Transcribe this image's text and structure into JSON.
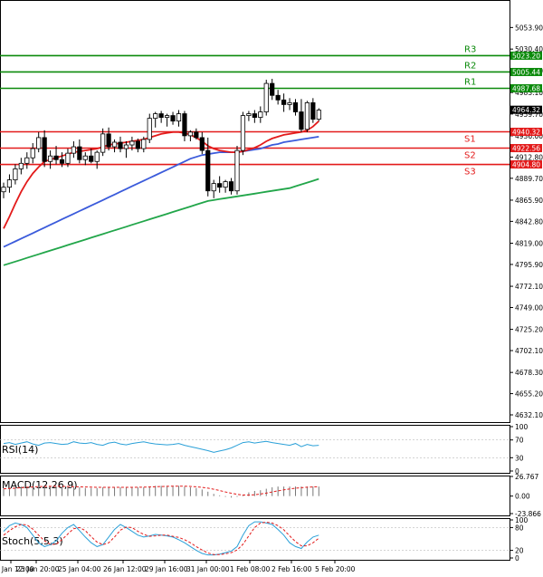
{
  "chart_data": {
    "type": "candlestick",
    "ylim": [
      4632.1,
      5072.0
    ],
    "price_ticks": [
      "5053.90",
      "5030.40",
      "5006.70",
      "4983.10",
      "4959.70",
      "4936.00",
      "4912.80",
      "4889.70",
      "4865.90",
      "4842.80",
      "4819.00",
      "4795.90",
      "4772.10",
      "4749.00",
      "4725.20",
      "4702.10",
      "4678.30",
      "4655.20",
      "4632.10"
    ],
    "time_labels": [
      "24 Jan 12:00",
      "23 Jan 20:00",
      "25 Jan 04:00",
      "26 Jan 12:00",
      "29 Jan 16:00",
      "31 Jan 00:00",
      "1 Feb 08:00",
      "2 Feb 16:00",
      "5 Feb 20:00"
    ],
    "current_price": "4964.32",
    "levels": [
      {
        "name": "R3",
        "value": 5023.2,
        "label": "5023.20",
        "color": "#0b8a0b"
      },
      {
        "name": "R2",
        "value": 5005.44,
        "label": "5005.44",
        "color": "#0b8a0b"
      },
      {
        "name": "R1",
        "value": 4987.68,
        "label": "4987.68",
        "color": "#0b8a0b"
      },
      {
        "name": "S1",
        "value": 4940.32,
        "label": "4940.32",
        "color": "#e31b1b"
      },
      {
        "name": "S2",
        "value": 4922.56,
        "label": "4922.56",
        "color": "#e31b1b"
      },
      {
        "name": "S3",
        "value": 4904.8,
        "label": "4904.80",
        "color": "#e31b1b"
      }
    ],
    "candles": [
      [
        4875,
        4885,
        4868,
        4880
      ],
      [
        4880,
        4894,
        4874,
        4888
      ],
      [
        4888,
        4905,
        4883,
        4900
      ],
      [
        4900,
        4912,
        4894,
        4906
      ],
      [
        4906,
        4918,
        4900,
        4912
      ],
      [
        4912,
        4928,
        4906,
        4922
      ],
      [
        4922,
        4940,
        4918,
        4934
      ],
      [
        4934,
        4942,
        4902,
        4908
      ],
      [
        4908,
        4920,
        4900,
        4914
      ],
      [
        4914,
        4925,
        4905,
        4910
      ],
      [
        4910,
        4918,
        4902,
        4906
      ],
      [
        4906,
        4922,
        4902,
        4917
      ],
      [
        4917,
        4930,
        4912,
        4924
      ],
      [
        4924,
        4932,
        4906,
        4910
      ],
      [
        4910,
        4918,
        4904,
        4914
      ],
      [
        4914,
        4922,
        4906,
        4908
      ],
      [
        4908,
        4920,
        4900,
        4918
      ],
      [
        4918,
        4944,
        4914,
        4938
      ],
      [
        4938,
        4945,
        4920,
        4924
      ],
      [
        4924,
        4932,
        4918,
        4929
      ],
      [
        4929,
        4935,
        4918,
        4922
      ],
      [
        4922,
        4930,
        4912,
        4926
      ],
      [
        4926,
        4935,
        4920,
        4930
      ],
      [
        4930,
        4933,
        4918,
        4922
      ],
      [
        4922,
        4935,
        4918,
        4932
      ],
      [
        4932,
        4960,
        4928,
        4955
      ],
      [
        4955,
        4962,
        4945,
        4960
      ],
      [
        4960,
        4963,
        4950,
        4956
      ],
      [
        4956,
        4960,
        4946,
        4958
      ],
      [
        4958,
        4962,
        4948,
        4952
      ],
      [
        4952,
        4964,
        4946,
        4960
      ],
      [
        4960,
        4963,
        4930,
        4936
      ],
      [
        4936,
        4942,
        4930,
        4940
      ],
      [
        4940,
        4944,
        4932,
        4934
      ],
      [
        4934,
        4940,
        4916,
        4920
      ],
      [
        4920,
        4934,
        4870,
        4876
      ],
      [
        4876,
        4888,
        4868,
        4884
      ],
      [
        4884,
        4892,
        4874,
        4880
      ],
      [
        4880,
        4888,
        4874,
        4886
      ],
      [
        4886,
        4890,
        4872,
        4876
      ],
      [
        4876,
        4925,
        4872,
        4920
      ],
      [
        4920,
        4962,
        4915,
        4958
      ],
      [
        4958,
        4963,
        4952,
        4960
      ],
      [
        4960,
        4964,
        4950,
        4956
      ],
      [
        4956,
        4968,
        4950,
        4962
      ],
      [
        4962,
        4997,
        4958,
        4993
      ],
      [
        4993,
        4998,
        4975,
        4980
      ],
      [
        4980,
        4986,
        4970,
        4975
      ],
      [
        4975,
        4982,
        4962,
        4970
      ],
      [
        4970,
        4977,
        4964,
        4972
      ],
      [
        4972,
        4976,
        4958,
        4962
      ],
      [
        4962,
        4976,
        4940,
        4943
      ],
      [
        4943,
        4974,
        4940,
        4972
      ],
      [
        4972,
        4977,
        4950,
        4954
      ],
      [
        4954,
        4966,
        4952,
        4964
      ]
    ],
    "ma_fast": [
      4835,
      4848,
      4862,
      4875,
      4886,
      4895,
      4902,
      4908,
      4910,
      4912,
      4914,
      4916,
      4918,
      4919,
      4920,
      4921,
      4922,
      4924,
      4926,
      4927,
      4928,
      4929,
      4930,
      4931,
      4932,
      4934,
      4936,
      4938,
      4939,
      4940,
      4940,
      4939,
      4937,
      4934,
      4930,
      4925,
      4922,
      4920,
      4919,
      4918,
      4918,
      4919,
      4921,
      4923,
      4926,
      4930,
      4933,
      4935,
      4937,
      4938,
      4939,
      4940,
      4942,
      4946,
      4952
    ],
    "ma_mid": [
      4815,
      4818,
      4821,
      4824,
      4827,
      4830,
      4833,
      4836,
      4839,
      4842,
      4845,
      4848,
      4851,
      4854,
      4857,
      4860,
      4863,
      4866,
      4869,
      4872,
      4875,
      4878,
      4881,
      4884,
      4887,
      4890,
      4893,
      4896,
      4899,
      4902,
      4905,
      4908,
      4911,
      4913,
      4915,
      4916,
      4917,
      4918,
      4918,
      4918,
      4918,
      4919,
      4920,
      4921,
      4922,
      4924,
      4926,
      4927,
      4929,
      4930,
      4931,
      4932,
      4933,
      4934,
      4935
    ],
    "ma_slow": [
      4795,
      4797,
      4799,
      4801,
      4803,
      4805,
      4807,
      4809,
      4811,
      4813,
      4815,
      4817,
      4819,
      4821,
      4823,
      4825,
      4827,
      4829,
      4831,
      4833,
      4835,
      4837,
      4839,
      4841,
      4843,
      4845,
      4847,
      4849,
      4851,
      4853,
      4855,
      4857,
      4859,
      4861,
      4863,
      4865,
      4866,
      4867,
      4868,
      4869,
      4870,
      4871,
      4872,
      4873,
      4874,
      4875,
      4876,
      4877,
      4878,
      4879,
      4881,
      4883,
      4885,
      4887,
      4889
    ],
    "rsi": {
      "label": "RSI(14)",
      "ticks": [
        "100",
        "70",
        "30",
        "0"
      ],
      "values": [
        62,
        64,
        60,
        63,
        66,
        61,
        58,
        63,
        64,
        62,
        60,
        61,
        66,
        63,
        62,
        64,
        60,
        58,
        63,
        65,
        61,
        59,
        62,
        64,
        66,
        63,
        61,
        60,
        59,
        60,
        62,
        58,
        55,
        52,
        49,
        46,
        42,
        45,
        48,
        52,
        58,
        64,
        66,
        63,
        65,
        67,
        64,
        62,
        60,
        58,
        62,
        55,
        60,
        57,
        58
      ]
    },
    "macd": {
      "label": "MACD(12,26,9)",
      "ticks": [
        "26.767",
        "0.00",
        "-23.866"
      ],
      "hist": [
        10,
        11,
        12,
        13,
        13,
        14,
        14,
        14,
        13,
        13,
        13,
        12,
        12,
        12,
        11,
        11,
        11,
        12,
        12,
        12,
        12,
        12,
        12,
        12,
        12,
        13,
        14,
        14,
        14,
        14,
        14,
        13,
        12,
        11,
        9,
        6,
        3,
        1,
        -1,
        -2,
        -1,
        2,
        5,
        7,
        8,
        10,
        12,
        13,
        13,
        13,
        13,
        13,
        13,
        13,
        13
      ],
      "signal": [
        10,
        10.3,
        10.8,
        11.5,
        12,
        12.5,
        12.9,
        13.2,
        13.3,
        13.3,
        13.2,
        13,
        12.8,
        12.6,
        12.4,
        12.2,
        12,
        11.9,
        11.9,
        11.9,
        11.9,
        11.9,
        12,
        12.1,
        12.2,
        12.4,
        12.7,
        13,
        13.3,
        13.5,
        13.6,
        13.5,
        13.2,
        12.7,
        11.9,
        10.8,
        9.3,
        7.6,
        5.7,
        3.9,
        2.4,
        1.5,
        1.3,
        1.8,
        2.8,
        4.1,
        5.6,
        7.1,
        8.5,
        9.7,
        10.7,
        11.5,
        12.1,
        12.5,
        12.8
      ]
    },
    "stoch": {
      "label": "Stoch(5,5,3)",
      "ticks": [
        "100",
        "80",
        "20",
        "0"
      ],
      "k": [
        70,
        85,
        92,
        88,
        80,
        60,
        40,
        30,
        35,
        45,
        65,
        80,
        88,
        72,
        55,
        40,
        30,
        35,
        55,
        75,
        88,
        80,
        70,
        60,
        55,
        58,
        62,
        60,
        58,
        55,
        48,
        40,
        30,
        20,
        12,
        8,
        8,
        10,
        14,
        18,
        30,
        60,
        85,
        95,
        95,
        92,
        88,
        75,
        60,
        40,
        30,
        25,
        42,
        55,
        60
      ],
      "d": [
        60,
        72,
        82,
        88,
        87,
        76,
        60,
        45,
        36,
        36,
        48,
        63,
        77,
        80,
        72,
        56,
        42,
        35,
        40,
        55,
        73,
        81,
        80,
        70,
        62,
        57,
        58,
        60,
        60,
        57,
        54,
        48,
        40,
        30,
        21,
        13,
        9,
        9,
        11,
        14,
        21,
        36,
        58,
        80,
        92,
        94,
        92,
        85,
        74,
        58,
        43,
        32,
        32,
        40,
        52
      ]
    }
  }
}
